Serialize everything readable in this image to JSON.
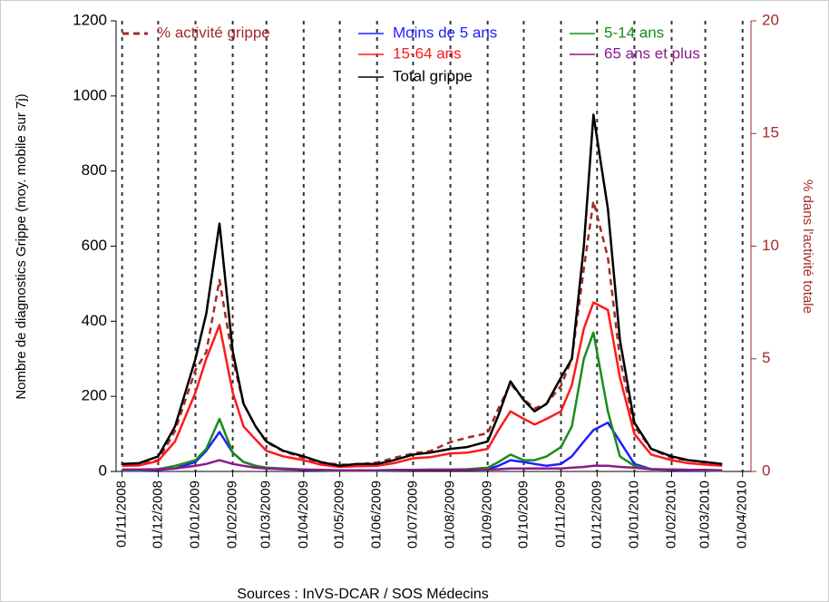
{
  "chart_data": {
    "type": "line",
    "y_label": "Nombre de diagnostics Grippe (moy. mobile sur 7j)",
    "y2_label": "% dans l'activité totale",
    "source": "Sources : InVS-DCAR / SOS Médecins",
    "x": [
      "01/11/2008",
      "15/11/2008",
      "01/12/2008",
      "15/12/2008",
      "01/01/2009",
      "10/01/2009",
      "21/01/2009",
      "01/02/2009",
      "10/02/2009",
      "20/02/2009",
      "01/03/2009",
      "15/03/2009",
      "01/04/2009",
      "15/04/2009",
      "01/05/2009",
      "15/05/2009",
      "01/06/2009",
      "15/06/2009",
      "01/07/2009",
      "15/07/2009",
      "01/08/2009",
      "15/08/2009",
      "01/09/2009",
      "10/09/2009",
      "20/09/2009",
      "01/10/2009",
      "10/10/2009",
      "20/10/2009",
      "01/11/2009",
      "10/11/2009",
      "20/11/2009",
      "28/11/2009",
      "10/12/2009",
      "20/12/2009",
      "01/01/2010",
      "15/01/2010",
      "01/02/2010",
      "15/02/2010",
      "01/03/2010",
      "15/03/2010"
    ],
    "series": [
      {
        "name": "% activité grippe",
        "color": "#a52a2a",
        "axis": "y2",
        "dash": true,
        "values": [
          0.3,
          0.3,
          0.5,
          1.8,
          4.5,
          5.3,
          8.5,
          5.0,
          3.0,
          2.0,
          1.3,
          0.9,
          0.6,
          0.4,
          0.3,
          0.3,
          0.4,
          0.6,
          0.8,
          0.9,
          1.3,
          1.5,
          1.7,
          2.8,
          3.9,
          3.2,
          2.8,
          3.0,
          3.8,
          5.0,
          9.0,
          12.0,
          9.5,
          5.0,
          2.0,
          1.0,
          0.6,
          0.5,
          0.4,
          0.3
        ]
      },
      {
        "name": "Moins de 5 ans",
        "color": "#1f1fff",
        "values": [
          2,
          2,
          4,
          8,
          25,
          55,
          105,
          50,
          25,
          15,
          10,
          6,
          4,
          3,
          2,
          2,
          2,
          3,
          4,
          4,
          4,
          5,
          6,
          15,
          30,
          25,
          20,
          15,
          20,
          40,
          80,
          110,
          130,
          80,
          20,
          6,
          4,
          3,
          3,
          2
        ]
      },
      {
        "name": "15-64 ans",
        "color": "#ff1a1a",
        "values": [
          15,
          16,
          28,
          80,
          210,
          300,
          390,
          210,
          120,
          85,
          55,
          40,
          30,
          18,
          12,
          14,
          15,
          22,
          35,
          38,
          48,
          50,
          60,
          110,
          160,
          140,
          125,
          140,
          160,
          230,
          380,
          450,
          430,
          250,
          100,
          45,
          30,
          22,
          18,
          15
        ]
      },
      {
        "name": "Total grippe",
        "color": "#000000",
        "values": [
          20,
          22,
          40,
          120,
          300,
          420,
          660,
          320,
          180,
          120,
          80,
          55,
          40,
          25,
          15,
          20,
          20,
          30,
          45,
          50,
          60,
          65,
          80,
          150,
          240,
          190,
          160,
          180,
          250,
          300,
          600,
          950,
          700,
          350,
          130,
          60,
          40,
          30,
          25,
          20
        ]
      },
      {
        "name": "5-14 ans",
        "color": "#1a8c1a",
        "values": [
          3,
          3,
          6,
          15,
          30,
          60,
          140,
          50,
          25,
          15,
          10,
          8,
          5,
          3,
          2,
          2,
          2,
          3,
          4,
          5,
          5,
          6,
          10,
          25,
          45,
          30,
          30,
          40,
          65,
          120,
          300,
          370,
          160,
          40,
          15,
          6,
          5,
          4,
          3,
          2
        ]
      },
      {
        "name": "65 ans et plus",
        "color": "#8b1a8b",
        "values": [
          5,
          5,
          6,
          8,
          15,
          20,
          30,
          20,
          15,
          10,
          8,
          6,
          5,
          4,
          3,
          3,
          3,
          4,
          4,
          4,
          4,
          4,
          5,
          6,
          8,
          8,
          8,
          8,
          8,
          10,
          12,
          15,
          15,
          12,
          10,
          6,
          5,
          4,
          4,
          3
        ]
      }
    ],
    "xlim": [
      "27/10/2008",
      "08/04/2010"
    ],
    "xticks": [
      "01/11/2008",
      "01/12/2008",
      "01/01/2009",
      "01/02/2009",
      "01/03/2009",
      "01/04/2009",
      "01/05/2009",
      "01/06/2009",
      "01/07/2009",
      "01/08/2009",
      "01/09/2009",
      "01/10/2009",
      "01/11/2009",
      "01/12/2009",
      "01/01/2010",
      "01/02/2010",
      "01/03/2010",
      "01/04/2010"
    ],
    "ylim": [
      0,
      1200
    ],
    "yticks": [
      0,
      200,
      400,
      600,
      800,
      1000,
      1200
    ],
    "y2lim": [
      0,
      20
    ],
    "y2ticks": [
      0,
      5,
      10,
      15,
      20
    ],
    "grid": true
  }
}
